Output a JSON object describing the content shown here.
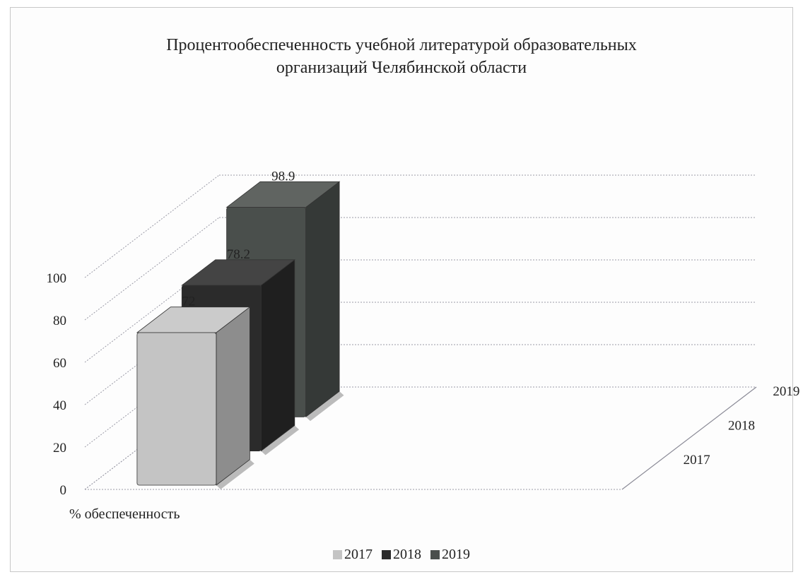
{
  "chart_data": {
    "type": "bar",
    "variant": "3d-column",
    "title": "Процентообеспеченность учебной литературой образовательных организаций Челябинской области",
    "title_lines": [
      "Процентообеспеченность учебной литературой образовательных",
      "организаций Челябинской области"
    ],
    "categories": [
      "% обеспеченность"
    ],
    "series": [
      {
        "name": "2017",
        "values": [
          72
        ],
        "data_label": "72",
        "color": "#c4c4c4"
      },
      {
        "name": "2018",
        "values": [
          78.2
        ],
        "data_label": "78.2",
        "color": "#2b2b2b"
      },
      {
        "name": "2019",
        "values": [
          98.9
        ],
        "data_label": "98.9",
        "color": "#4a4f4c"
      }
    ],
    "y_ticks": [
      "0",
      "20",
      "40",
      "60",
      "80",
      "100"
    ],
    "ylim": [
      0,
      100
    ],
    "grid": true,
    "legend_position": "bottom",
    "depth_labels": [
      "2017",
      "2018",
      "2019"
    ]
  }
}
